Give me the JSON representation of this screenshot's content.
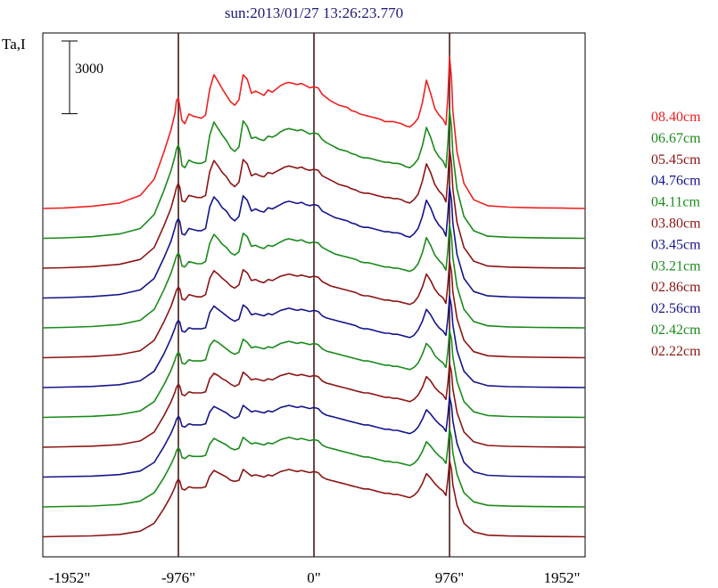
{
  "chart_data": {
    "type": "line",
    "title": "sun:2013/01/27 13:26:23.770",
    "ylabel": "Ta,I",
    "scale_bar_label": "3000",
    "scale_bar_value": 3000,
    "x_ticks": [
      "-1952\"",
      "-976\"",
      "0\"",
      "976\"",
      "1952\""
    ],
    "x_tick_values": [
      -1952,
      -976,
      0,
      976,
      1952
    ],
    "xlim": [
      -1952,
      1952
    ],
    "vertical_lines": [
      -976,
      0,
      976
    ],
    "profile_x": [
      -1952,
      -1800,
      -1600,
      -1400,
      -1250,
      -1150,
      -1080,
      -1030,
      -1000,
      -990,
      -976,
      -965,
      -950,
      -930,
      -900,
      -870,
      -840,
      -810,
      -780,
      -750,
      -720,
      -690,
      -660,
      -630,
      -600,
      -570,
      -540,
      -510,
      -480,
      -450,
      -420,
      -390,
      -360,
      -330,
      -300,
      -270,
      -240,
      -210,
      -180,
      -150,
      -120,
      -90,
      -60,
      -30,
      0,
      30,
      60,
      90,
      120,
      150,
      180,
      210,
      240,
      270,
      300,
      330,
      360,
      390,
      420,
      450,
      480,
      510,
      540,
      570,
      600,
      630,
      660,
      690,
      720,
      750,
      780,
      810,
      840,
      870,
      900,
      930,
      950,
      965,
      976,
      990,
      1000,
      1030,
      1080,
      1150,
      1250,
      1400,
      1600,
      1800,
      1952
    ],
    "series": [
      {
        "name": "08.40cm",
        "color": "#ee2020",
        "offset": 10,
        "y": [
          0,
          50,
          200,
          500,
          1200,
          2700,
          5200,
          7200,
          8800,
          9900,
          10200,
          9300,
          8100,
          7800,
          8700,
          8500,
          8400,
          8300,
          8600,
          11000,
          12300,
          11700,
          11000,
          10400,
          9800,
          9500,
          10000,
          12300,
          11900,
          10600,
          10800,
          10600,
          10400,
          10900,
          10700,
          11000,
          11300,
          11500,
          11600,
          11500,
          11400,
          11500,
          11300,
          11100,
          11200,
          11100,
          10500,
          10200,
          9900,
          9700,
          9500,
          9400,
          9300,
          9000,
          8900,
          8700,
          8600,
          8500,
          8400,
          8300,
          8200,
          8000,
          8000,
          8000,
          7900,
          7800,
          7600,
          7500,
          7800,
          8300,
          9700,
          11800,
          10600,
          9200,
          8600,
          8200,
          7700,
          10500,
          14000,
          12000,
          9000,
          5200,
          2300,
          800,
          250,
          120,
          60,
          30,
          0
        ]
      },
      {
        "name": "06.67cm",
        "color": "#1a8a1a",
        "offset": 9,
        "y": [
          0,
          40,
          150,
          400,
          900,
          2200,
          4400,
          6200,
          7600,
          8200,
          8600,
          8100,
          6700,
          6500,
          7200,
          7000,
          6900,
          6900,
          7100,
          9500,
          10700,
          10100,
          9500,
          9000,
          8300,
          8000,
          8400,
          10800,
          10300,
          9200,
          9300,
          9100,
          9000,
          9400,
          9300,
          9500,
          9800,
          10000,
          10100,
          10000,
          9900,
          10000,
          9800,
          9600,
          9700,
          9600,
          9100,
          8800,
          8600,
          8400,
          8200,
          8100,
          8000,
          7800,
          7700,
          7500,
          7400,
          7400,
          7300,
          7200,
          7100,
          7000,
          7000,
          6900,
          6900,
          6800,
          6600,
          6500,
          6800,
          7300,
          8500,
          10200,
          9300,
          8100,
          7500,
          7100,
          6500,
          8900,
          11800,
          10300,
          7800,
          4500,
          2000,
          700,
          200,
          100,
          50,
          20,
          0
        ]
      },
      {
        "name": "05.45cm",
        "color": "#8b1515",
        "offset": 8,
        "y": [
          0,
          40,
          140,
          350,
          800,
          1900,
          3900,
          5500,
          6900,
          7400,
          7800,
          7400,
          6200,
          6100,
          6700,
          6600,
          6500,
          6500,
          6700,
          8900,
          9900,
          9400,
          8800,
          8400,
          7800,
          7500,
          7900,
          10000,
          9600,
          8500,
          8700,
          8500,
          8400,
          8800,
          8700,
          8900,
          9100,
          9300,
          9400,
          9300,
          9200,
          9300,
          9100,
          9000,
          9100,
          9000,
          8500,
          8300,
          8100,
          7900,
          7700,
          7600,
          7500,
          7300,
          7200,
          7000,
          6900,
          6900,
          6800,
          6700,
          6600,
          6500,
          6500,
          6400,
          6400,
          6300,
          6100,
          6000,
          6300,
          6800,
          8000,
          9600,
          8800,
          7700,
          7100,
          6700,
          6100,
          8400,
          11000,
          9600,
          7300,
          4200,
          1900,
          650,
          200,
          100,
          50,
          20,
          0
        ]
      },
      {
        "name": "04.76cm",
        "color": "#15158b",
        "offset": 7,
        "y": [
          0,
          40,
          130,
          320,
          750,
          1800,
          3700,
          5200,
          6500,
          7000,
          7300,
          7000,
          5900,
          5800,
          6400,
          6300,
          6200,
          6200,
          6400,
          8400,
          9300,
          8900,
          8300,
          8000,
          7400,
          7100,
          7500,
          9400,
          9000,
          8000,
          8200,
          8000,
          7900,
          8300,
          8200,
          8400,
          8600,
          8800,
          8900,
          8800,
          8700,
          8800,
          8600,
          8500,
          8600,
          8500,
          8000,
          7800,
          7600,
          7400,
          7300,
          7200,
          7100,
          6900,
          6800,
          6600,
          6500,
          6500,
          6400,
          6300,
          6200,
          6100,
          6100,
          6000,
          6000,
          5900,
          5700,
          5600,
          5900,
          6400,
          7500,
          9000,
          8300,
          7300,
          6700,
          6300,
          5700,
          7900,
          10200,
          9000,
          6900,
          4000,
          1800,
          600,
          200,
          100,
          50,
          20,
          0
        ]
      },
      {
        "name": "04.11cm",
        "color": "#1a8a1a",
        "offset": 6,
        "y": [
          0,
          40,
          120,
          300,
          700,
          1700,
          3500,
          5000,
          6200,
          6600,
          6900,
          6600,
          5700,
          5600,
          6100,
          6000,
          5900,
          5900,
          6100,
          7800,
          8600,
          8200,
          7700,
          7400,
          6900,
          6700,
          7000,
          8700,
          8400,
          7500,
          7600,
          7400,
          7300,
          7600,
          7500,
          7700,
          7900,
          8100,
          8200,
          8100,
          8000,
          8100,
          7900,
          7800,
          7900,
          7800,
          7400,
          7200,
          7000,
          6800,
          6700,
          6600,
          6500,
          6400,
          6300,
          6100,
          6000,
          6000,
          5900,
          5800,
          5700,
          5600,
          5600,
          5500,
          5500,
          5400,
          5300,
          5200,
          5400,
          5900,
          6900,
          8300,
          7600,
          6700,
          6200,
          5800,
          5300,
          7300,
          9500,
          8400,
          6500,
          3800,
          1700,
          580,
          190,
          90,
          45,
          20,
          0
        ]
      },
      {
        "name": "03.80cm",
        "color": "#8b1515",
        "offset": 5,
        "y": [
          0,
          40,
          110,
          280,
          650,
          1600,
          3300,
          4700,
          5800,
          6200,
          6500,
          6300,
          5400,
          5300,
          5800,
          5700,
          5600,
          5600,
          5800,
          7300,
          8000,
          7700,
          7300,
          7000,
          6600,
          6400,
          6700,
          8100,
          7800,
          7100,
          7200,
          7000,
          6900,
          7200,
          7100,
          7300,
          7500,
          7600,
          7700,
          7600,
          7500,
          7600,
          7500,
          7400,
          7500,
          7400,
          7000,
          6800,
          6600,
          6500,
          6400,
          6300,
          6200,
          6100,
          6000,
          5800,
          5700,
          5700,
          5600,
          5500,
          5400,
          5300,
          5300,
          5200,
          5200,
          5100,
          5000,
          4900,
          5100,
          5600,
          6500,
          7700,
          7100,
          6300,
          5800,
          5500,
          5000,
          6900,
          8900,
          7900,
          6100,
          3600,
          1600,
          560,
          180,
          90,
          45,
          20,
          0
        ]
      },
      {
        "name": "03.45cm",
        "color": "#15158b",
        "offset": 4,
        "y": [
          0,
          40,
          100,
          260,
          620,
          1500,
          3100,
          4500,
          5500,
          5900,
          6200,
          6000,
          5200,
          5100,
          5500,
          5400,
          5400,
          5400,
          5500,
          6900,
          7500,
          7200,
          6900,
          6600,
          6300,
          6100,
          6300,
          7600,
          7300,
          6700,
          6800,
          6700,
          6600,
          6800,
          6700,
          6900,
          7100,
          7200,
          7300,
          7200,
          7100,
          7200,
          7100,
          7000,
          7100,
          7000,
          6600,
          6400,
          6300,
          6200,
          6100,
          6000,
          5900,
          5800,
          5700,
          5500,
          5400,
          5400,
          5300,
          5200,
          5100,
          5000,
          5000,
          4900,
          4900,
          4800,
          4700,
          4600,
          4800,
          5300,
          6100,
          7200,
          6700,
          6000,
          5500,
          5200,
          4800,
          6500,
          8400,
          7500,
          5800,
          3400,
          1500,
          540,
          170,
          85,
          40,
          20,
          0
        ]
      },
      {
        "name": "03.21cm",
        "color": "#1a8a1a",
        "offset": 3,
        "y": [
          0,
          40,
          100,
          250,
          600,
          1450,
          3000,
          4300,
          5300,
          5700,
          6000,
          5800,
          5000,
          4900,
          5300,
          5200,
          5200,
          5200,
          5300,
          6600,
          7100,
          6900,
          6600,
          6300,
          6000,
          5800,
          6000,
          7200,
          6900,
          6400,
          6500,
          6400,
          6300,
          6500,
          6400,
          6600,
          6800,
          6900,
          7000,
          6900,
          6800,
          6900,
          6800,
          6700,
          6800,
          6700,
          6300,
          6100,
          6000,
          5900,
          5800,
          5700,
          5600,
          5500,
          5400,
          5300,
          5200,
          5200,
          5100,
          5000,
          4900,
          4800,
          4800,
          4700,
          4700,
          4600,
          4500,
          4400,
          4600,
          5000,
          5800,
          6800,
          6400,
          5700,
          5300,
          5000,
          4600,
          6200,
          8000,
          7200,
          5600,
          3300,
          1450,
          520,
          170,
          85,
          40,
          20,
          0
        ]
      },
      {
        "name": "02.86cm",
        "color": "#8b1515",
        "offset": 2,
        "y": [
          0,
          40,
          95,
          240,
          580,
          1400,
          2900,
          4150,
          5100,
          5500,
          5800,
          5600,
          4850,
          4750,
          5100,
          5000,
          5000,
          5000,
          5100,
          6300,
          6800,
          6600,
          6300,
          6100,
          5800,
          5600,
          5800,
          6900,
          6600,
          6200,
          6300,
          6200,
          6100,
          6300,
          6200,
          6400,
          6600,
          6700,
          6800,
          6700,
          6600,
          6700,
          6600,
          6500,
          6600,
          6500,
          6100,
          5900,
          5800,
          5700,
          5600,
          5500,
          5400,
          5300,
          5200,
          5100,
          5000,
          5000,
          4900,
          4800,
          4700,
          4600,
          4600,
          4500,
          4500,
          4400,
          4300,
          4200,
          4400,
          4800,
          5500,
          6500,
          6100,
          5500,
          5100,
          4800,
          4400,
          6000,
          7700,
          6900,
          5400,
          3200,
          1400,
          500,
          160,
          80,
          40,
          20,
          0
        ]
      },
      {
        "name": "02.56cm",
        "color": "#15158b",
        "offset": 1,
        "y": [
          0,
          40,
          90,
          230,
          560,
          1350,
          2800,
          4000,
          4900,
          5300,
          5600,
          5400,
          4700,
          4600,
          4900,
          4800,
          4800,
          4800,
          4900,
          6000,
          6500,
          6300,
          6100,
          5900,
          5600,
          5400,
          5600,
          6600,
          6300,
          6000,
          6100,
          6000,
          5900,
          6100,
          6000,
          6200,
          6400,
          6500,
          6600,
          6500,
          6400,
          6500,
          6400,
          6300,
          6400,
          6300,
          5900,
          5700,
          5600,
          5500,
          5400,
          5300,
          5200,
          5100,
          5000,
          4900,
          4800,
          4800,
          4700,
          4600,
          4500,
          4400,
          4400,
          4300,
          4300,
          4200,
          4100,
          4000,
          4200,
          4600,
          5300,
          6200,
          5800,
          5300,
          4900,
          4600,
          4200,
          5800,
          7400,
          6600,
          5200,
          3100,
          1350,
          480,
          160,
          80,
          40,
          20,
          0
        ]
      },
      {
        "name": "02.42cm",
        "color": "#1a8a1a",
        "offset": 0,
        "y": [
          0,
          40,
          85,
          220,
          540,
          1300,
          2700,
          3900,
          4750,
          5150,
          5450,
          5250,
          4550,
          4450,
          4750,
          4650,
          4650,
          4650,
          4750,
          5800,
          6300,
          6100,
          5900,
          5700,
          5400,
          5250,
          5400,
          6400,
          6100,
          5800,
          5900,
          5800,
          5700,
          5900,
          5800,
          6000,
          6200,
          6300,
          6400,
          6300,
          6200,
          6300,
          6200,
          6100,
          6200,
          6100,
          5700,
          5500,
          5400,
          5300,
          5200,
          5100,
          5000,
          4900,
          4800,
          4700,
          4600,
          4600,
          4500,
          4400,
          4300,
          4200,
          4200,
          4100,
          4100,
          4000,
          3900,
          3800,
          4000,
          4400,
          5100,
          6000,
          5600,
          5100,
          4700,
          4400,
          4000,
          5600,
          7200,
          6400,
          5000,
          3000,
          1300,
          470,
          150,
          75,
          35,
          15,
          0
        ]
      },
      {
        "name": "02.22cm",
        "color": "#8b1515",
        "offset": -1,
        "y": [
          0,
          40,
          80,
          210,
          520,
          1250,
          2600,
          3750,
          4600,
          5000,
          5300,
          5100,
          4400,
          4300,
          4600,
          4500,
          4500,
          4500,
          4600,
          5600,
          6100,
          5900,
          5700,
          5500,
          5200,
          5100,
          5200,
          6200,
          5900,
          5600,
          5700,
          5600,
          5500,
          5700,
          5600,
          5800,
          6000,
          6100,
          6200,
          6100,
          6000,
          6100,
          6000,
          5900,
          6000,
          5900,
          5500,
          5300,
          5200,
          5100,
          5000,
          4900,
          4800,
          4700,
          4600,
          4500,
          4400,
          4400,
          4300,
          4200,
          4100,
          4000,
          4000,
          3900,
          3900,
          3800,
          3700,
          3600,
          3800,
          4200,
          4900,
          5800,
          5400,
          4900,
          4500,
          4200,
          3800,
          5400,
          7000,
          6200,
          4800,
          2900,
          1250,
          450,
          150,
          75,
          35,
          15,
          0
        ]
      }
    ]
  }
}
